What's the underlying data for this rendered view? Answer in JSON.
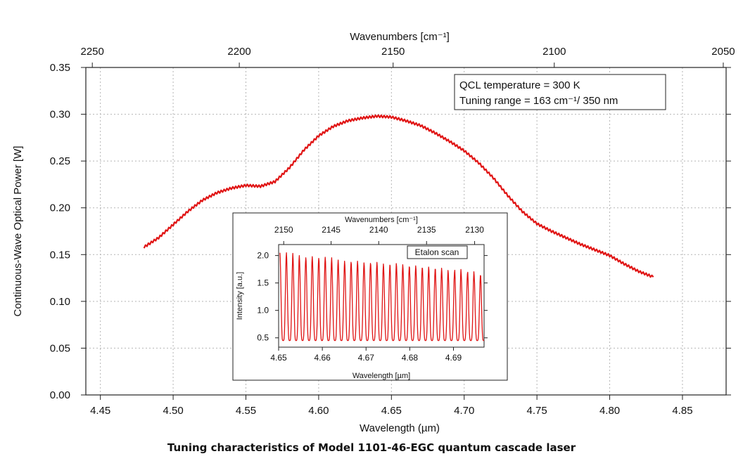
{
  "caption": "Tuning characteristics of Model 1101-46-EGC quantum cascade laser",
  "colors": {
    "trace": "#e01414",
    "grid": "#b5b5b5",
    "axis": "#222222"
  },
  "chart_data": [
    {
      "type": "line",
      "xlabel_bottom": "Wavelength (µm)",
      "xlabel_top": "Wavenumbers [cm⁻¹]",
      "ylabel": "Continuous-Wave Optical Power [W]",
      "xlim": [
        4.44,
        4.88
      ],
      "ylim": [
        0.0,
        0.35
      ],
      "xticks": [
        "4.45",
        "4.50",
        "4.55",
        "4.60",
        "4.65",
        "4.70",
        "4.75",
        "4.80",
        "4.85"
      ],
      "yticks": [
        "0.00",
        "0.05",
        "0.10",
        "0.15",
        "0.20",
        "0.25",
        "0.30",
        "0.35"
      ],
      "top_ticks": [
        "2250",
        "2200",
        "2150",
        "2100",
        "2050"
      ],
      "grid": true,
      "annotation_lines": [
        "QCL temperature = 300 K",
        "Tuning range = 163 cm⁻¹/ 350 nm"
      ],
      "series": [
        {
          "x": [
            4.48,
            4.49,
            4.5,
            4.51,
            4.52,
            4.53,
            4.54,
            4.55,
            4.56,
            4.57,
            4.58,
            4.59,
            4.6,
            4.61,
            4.62,
            4.63,
            4.64,
            4.65,
            4.66,
            4.67,
            4.68,
            4.69,
            4.7,
            4.71,
            4.72,
            4.73,
            4.74,
            4.75,
            4.76,
            4.77,
            4.78,
            4.79,
            4.8,
            4.81,
            4.82,
            4.83
          ],
          "y": [
            0.158,
            0.168,
            0.182,
            0.196,
            0.208,
            0.216,
            0.221,
            0.224,
            0.223,
            0.228,
            0.243,
            0.262,
            0.277,
            0.287,
            0.293,
            0.296,
            0.298,
            0.297,
            0.293,
            0.288,
            0.28,
            0.271,
            0.261,
            0.248,
            0.232,
            0.213,
            0.196,
            0.183,
            0.175,
            0.168,
            0.161,
            0.155,
            0.149,
            0.14,
            0.132,
            0.126
          ]
        }
      ]
    },
    {
      "type": "line",
      "title": "Etalon scan",
      "xlabel_bottom": "Wavelength [µm]",
      "xlabel_top": "Wavenumbers [cm⁻¹]",
      "ylabel": "Intensity [a.u.]",
      "xlim": [
        4.65,
        4.697
      ],
      "ylim": [
        0.33,
        2.2
      ],
      "xticks": [
        "4.65",
        "4.66",
        "4.67",
        "4.68",
        "4.69"
      ],
      "yticks": [
        "0.5",
        "1.0",
        "1.5",
        "2.0"
      ],
      "top_ticks": [
        "2150",
        "2145",
        "2140",
        "2135",
        "2130"
      ],
      "grid": false,
      "series": [
        {
          "fringe_period": 0.00148,
          "minimum": 0.45,
          "peaks": [
            2.05,
            2.04,
            2.0,
            1.96,
            1.98,
            1.95,
            1.97,
            1.96,
            1.92,
            1.9,
            1.88,
            1.9,
            1.87,
            1.86,
            1.88,
            1.85,
            1.83,
            1.86,
            1.84,
            1.8,
            1.82,
            1.78,
            1.8,
            1.76,
            1.78,
            1.74,
            1.7,
            1.76,
            1.68,
            1.72,
            1.65
          ]
        }
      ]
    }
  ]
}
